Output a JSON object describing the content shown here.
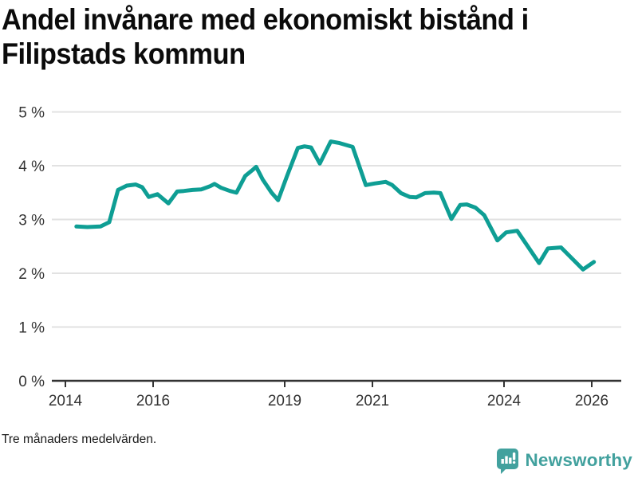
{
  "chart_data": {
    "type": "line",
    "title": "Andel invånare med ekonomiskt bistånd i Filipstads kommun",
    "note": "Tre månaders medelvärden.",
    "xlabel": "",
    "ylabel": "",
    "xlim": [
      2013.69,
      2026.67
    ],
    "ylim": [
      0,
      5.22
    ],
    "grid": "horizontal",
    "legend": "none",
    "x_ticks": [
      2014,
      2016,
      2019,
      2021,
      2024,
      2026
    ],
    "x_tick_labels": [
      "2014",
      "2016",
      "2019",
      "2021",
      "2024",
      "2026"
    ],
    "y_ticks": [
      0,
      1,
      2,
      3,
      4,
      5
    ],
    "y_tick_labels": [
      "0 %",
      "1 %",
      "2 %",
      "3 %",
      "4 %",
      "5 %"
    ],
    "series": [
      {
        "name": "Andel invånare med ekonomiskt bistånd",
        "color": "#0e9e94",
        "x": [
          2014.25,
          2014.5,
          2014.8,
          2015.0,
          2015.2,
          2015.4,
          2015.6,
          2015.75,
          2015.9,
          2016.1,
          2016.35,
          2016.55,
          2016.7,
          2016.9,
          2017.1,
          2017.3,
          2017.4,
          2017.55,
          2017.75,
          2017.9,
          2018.1,
          2018.25,
          2018.35,
          2018.5,
          2018.7,
          2018.85,
          2019.05,
          2019.3,
          2019.45,
          2019.6,
          2019.8,
          2020.05,
          2020.25,
          2020.55,
          2020.85,
          2021.05,
          2021.3,
          2021.45,
          2021.65,
          2021.85,
          2022.0,
          2022.2,
          2022.4,
          2022.55,
          2022.8,
          2023.0,
          2023.15,
          2023.35,
          2023.55,
          2023.85,
          2024.05,
          2024.3,
          2024.8,
          2025.0,
          2025.3,
          2025.8,
          2026.05
        ],
        "y": [
          2.87,
          2.86,
          2.87,
          2.95,
          3.55,
          3.63,
          3.65,
          3.6,
          3.42,
          3.47,
          3.3,
          3.52,
          3.53,
          3.55,
          3.56,
          3.62,
          3.66,
          3.59,
          3.53,
          3.5,
          3.81,
          3.91,
          3.98,
          3.74,
          3.5,
          3.36,
          3.8,
          4.33,
          4.36,
          4.34,
          4.04,
          4.45,
          4.42,
          4.35,
          3.64,
          3.67,
          3.7,
          3.64,
          3.49,
          3.42,
          3.41,
          3.49,
          3.5,
          3.49,
          3.01,
          3.27,
          3.28,
          3.22,
          3.08,
          2.61,
          2.76,
          2.79,
          2.19,
          2.46,
          2.48,
          2.07,
          2.21
        ]
      }
    ]
  },
  "colors": {
    "line": "#0e9e94",
    "grid": "#e2e2e2",
    "axis": "#333333",
    "tick_text": "#333333",
    "title_text": "#0b0b0b",
    "brand_teal": "#42a19e"
  },
  "branding": {
    "name": "Newsworthy",
    "icon": "bar-chart-speech-bubble"
  }
}
